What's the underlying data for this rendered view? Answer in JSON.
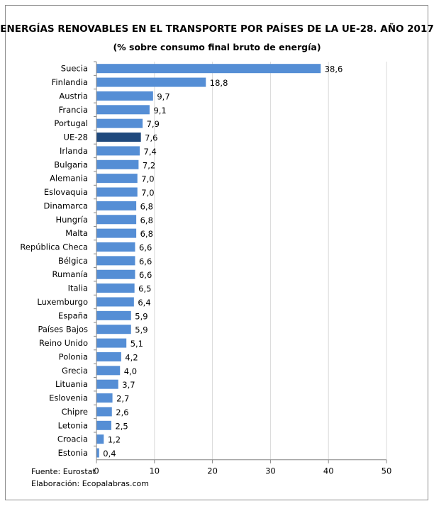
{
  "chart_data": {
    "type": "bar",
    "orientation": "horizontal",
    "title": "ENERGÍAS RENOVABLES EN EL TRANSPORTE POR PAÍSES DE LA UE-28. AÑO 2017",
    "subtitle": "(% sobre consumo final bruto de energía)",
    "categories": [
      "Suecia",
      "Finlandia",
      "Austria",
      "Francia",
      "Portugal",
      "UE-28",
      "Irlanda",
      "Bulgaria",
      "Alemania",
      "Eslovaquia",
      "Dinamarca",
      "Hungría",
      "Malta",
      "República Checa",
      "Bélgica",
      "Rumanía",
      "Italia",
      "Luxemburgo",
      "España",
      "Países Bajos",
      "Reino Unido",
      "Polonia",
      "Grecia",
      "Lituania",
      "Eslovenia",
      "Chipre",
      "Letonia",
      "Croacia",
      "Estonia"
    ],
    "values": [
      38.6,
      18.8,
      9.7,
      9.1,
      7.9,
      7.6,
      7.4,
      7.2,
      7.0,
      7.0,
      6.8,
      6.8,
      6.8,
      6.6,
      6.6,
      6.6,
      6.5,
      6.4,
      5.9,
      5.9,
      5.1,
      4.2,
      4.0,
      3.7,
      2.7,
      2.6,
      2.5,
      1.2,
      0.4
    ],
    "data_labels": [
      "38,6",
      "18,8",
      "9,7",
      "9,1",
      "7,9",
      "7,6",
      "7,4",
      "7,2",
      "7,0",
      "7,0",
      "6,8",
      "6,8",
      "6,8",
      "6,6",
      "6,6",
      "6,6",
      "6,5",
      "6,4",
      "5,9",
      "5,9",
      "5,1",
      "4,2",
      "4,0",
      "3,7",
      "2,7",
      "2,6",
      "2,5",
      "1,2",
      "0,4"
    ],
    "highlight": "UE-28",
    "xlim": [
      0,
      50
    ],
    "xticks": [
      "0",
      "10",
      "20",
      "30",
      "40",
      "50"
    ],
    "grid": "vertical",
    "colors": {
      "bar": "#558ed5",
      "highlight": "#1f497d",
      "grid": "#d9d9d9"
    }
  },
  "footer": {
    "source": "Fuente: Eurostat",
    "credit": "Elaboración: Ecopalabras.com"
  }
}
